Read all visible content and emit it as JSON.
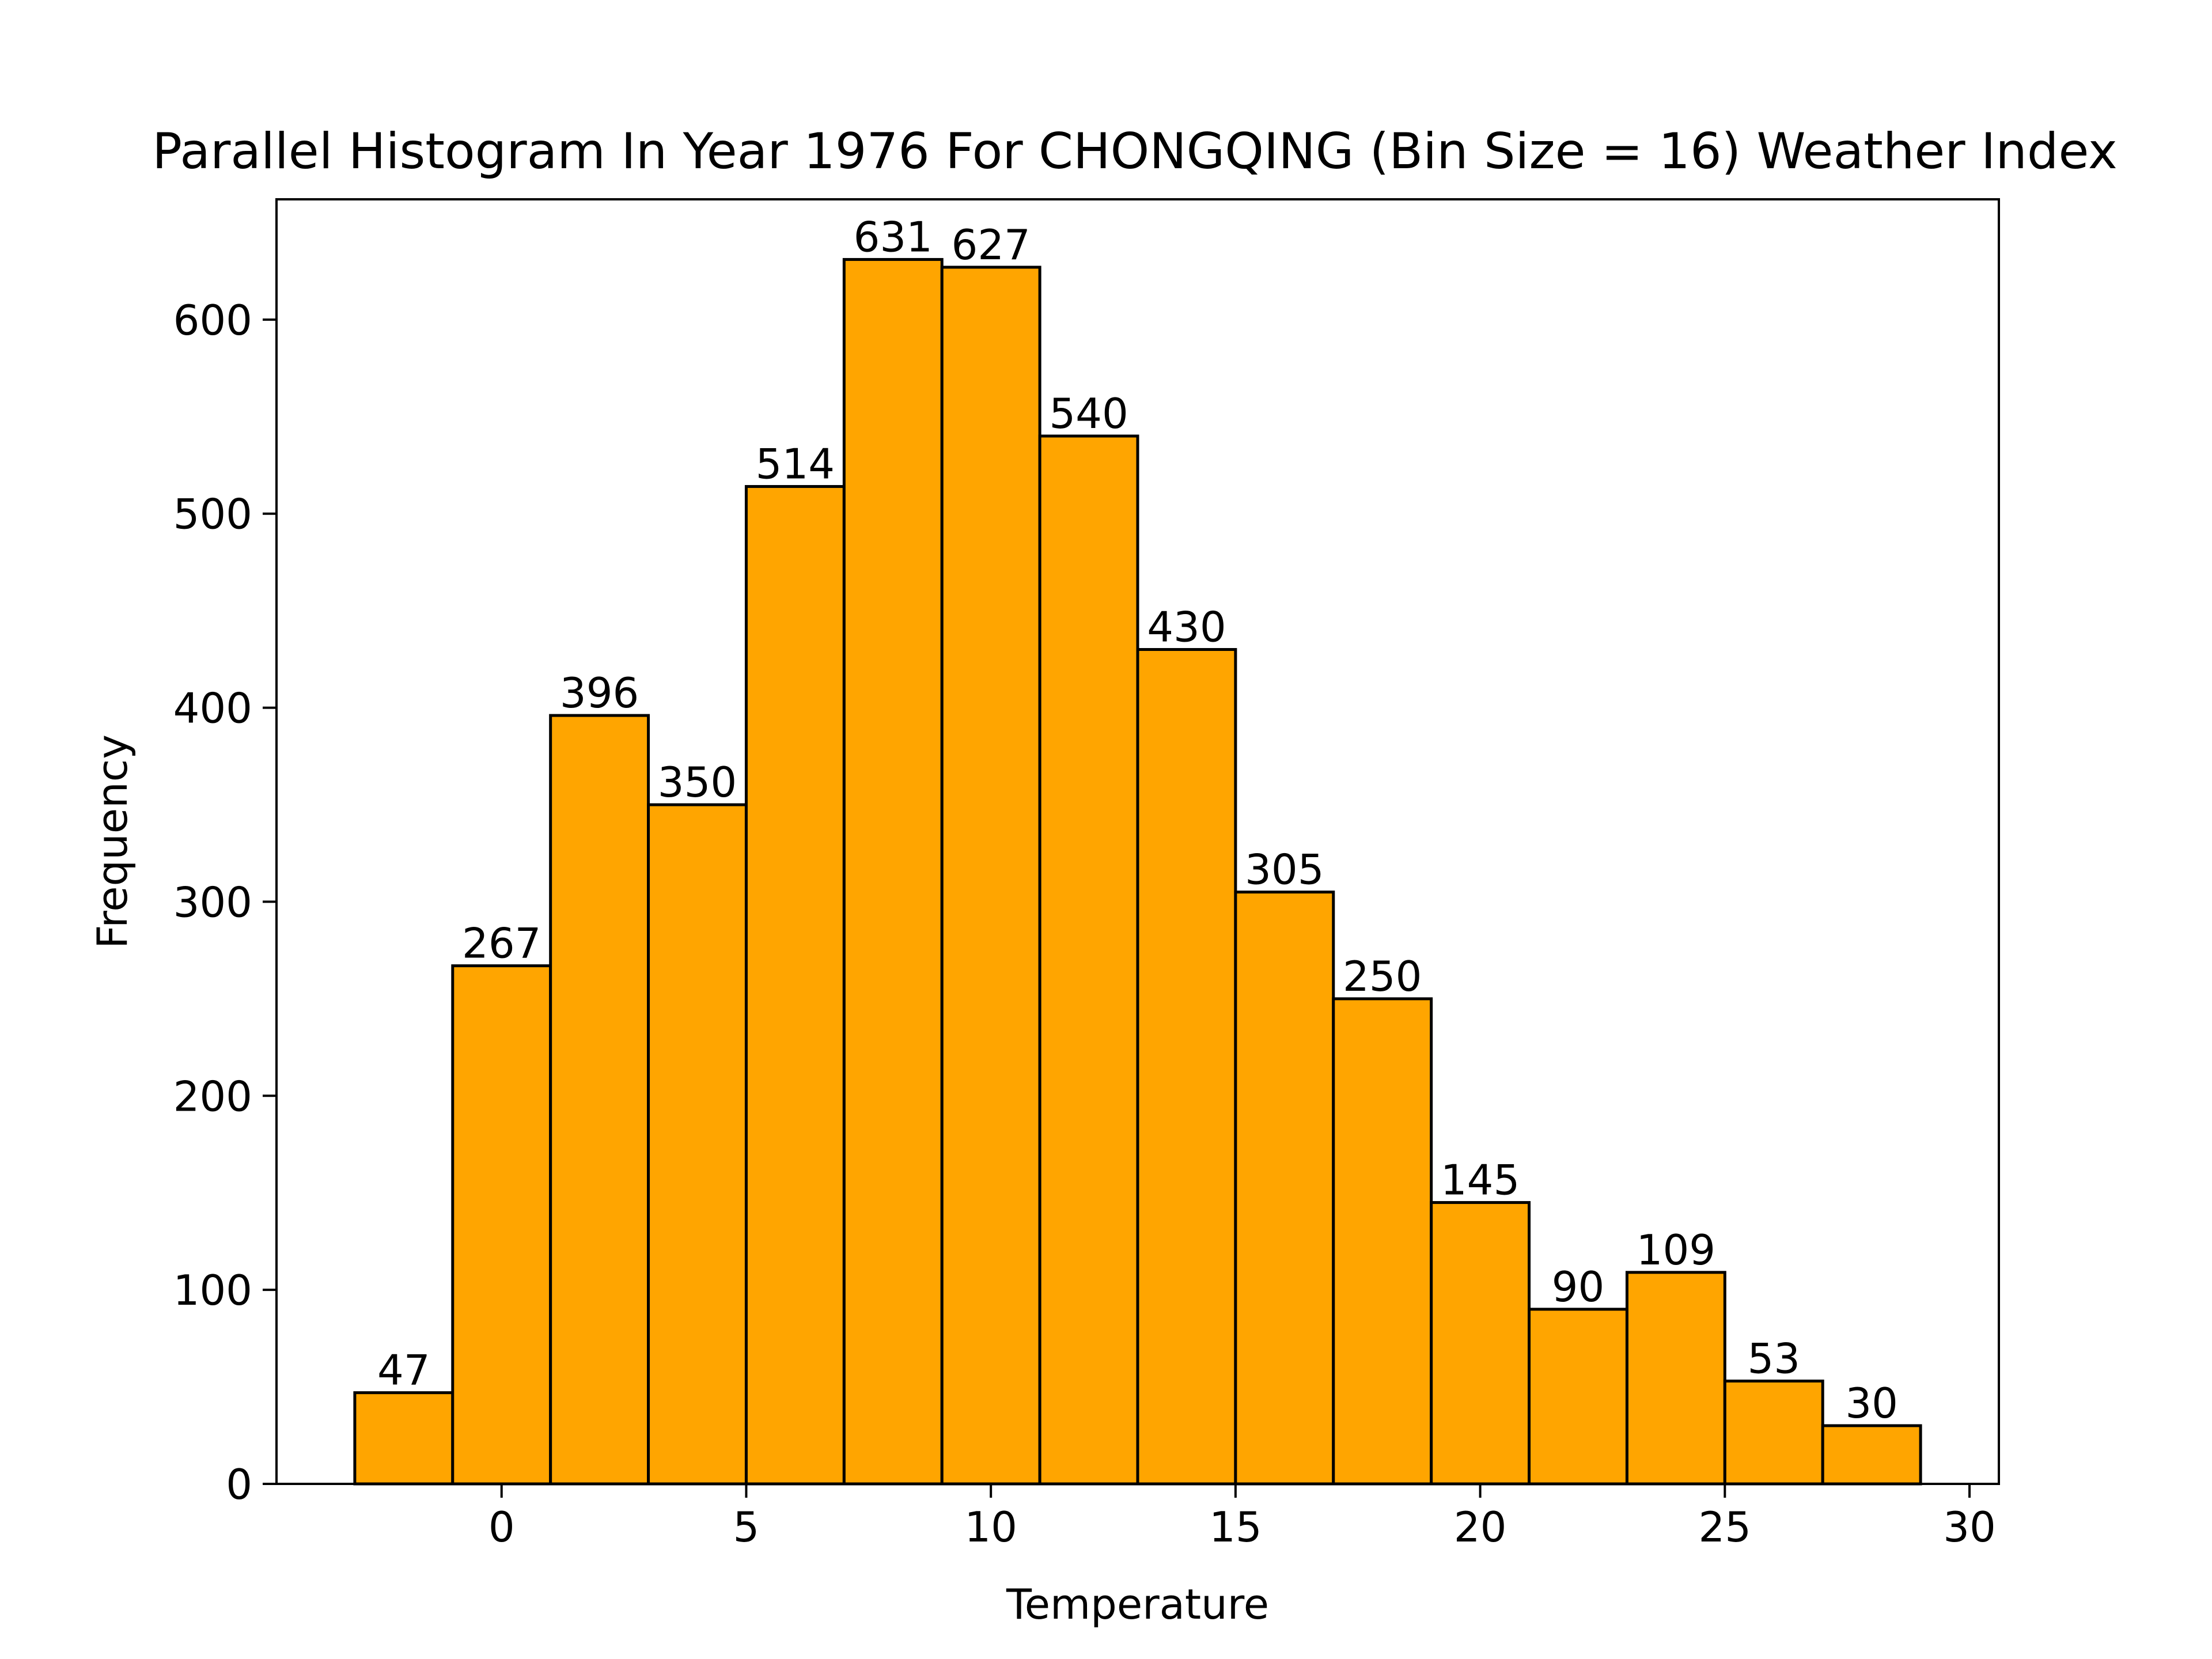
{
  "chart_data": {
    "type": "bar",
    "title": "Parallel Histogram In Year 1976 For CHONGQING (Bin Size = 16) Weather Index",
    "xlabel": "Temperature",
    "ylabel": "Frequency",
    "bin_edges": [
      -3,
      -1,
      1,
      3,
      5,
      7,
      9,
      11,
      13,
      15,
      17,
      19,
      21,
      23,
      25,
      27,
      29
    ],
    "values": [
      47,
      267,
      396,
      350,
      514,
      631,
      627,
      540,
      430,
      305,
      250,
      145,
      90,
      109,
      53,
      30
    ],
    "value_labels": [
      "47",
      "267",
      "396",
      "350",
      "514",
      "631",
      "627",
      "540",
      "430",
      "305",
      "250",
      "145",
      "90",
      "109",
      "53",
      "30"
    ],
    "xlim": [
      -4.6,
      30.6
    ],
    "ylim": [
      0,
      662
    ],
    "x_ticks": [
      0,
      5,
      10,
      15,
      20,
      25,
      30
    ],
    "x_tick_labels": [
      "0",
      "5",
      "10",
      "15",
      "20",
      "25",
      "30"
    ],
    "y_ticks": [
      0,
      100,
      200,
      300,
      400,
      500,
      600
    ],
    "y_tick_labels": [
      "0",
      "100",
      "200",
      "300",
      "400",
      "500",
      "600"
    ],
    "bar_color": "#FFA500",
    "edge_color": "#000000",
    "grid": false,
    "legend": "none"
  }
}
